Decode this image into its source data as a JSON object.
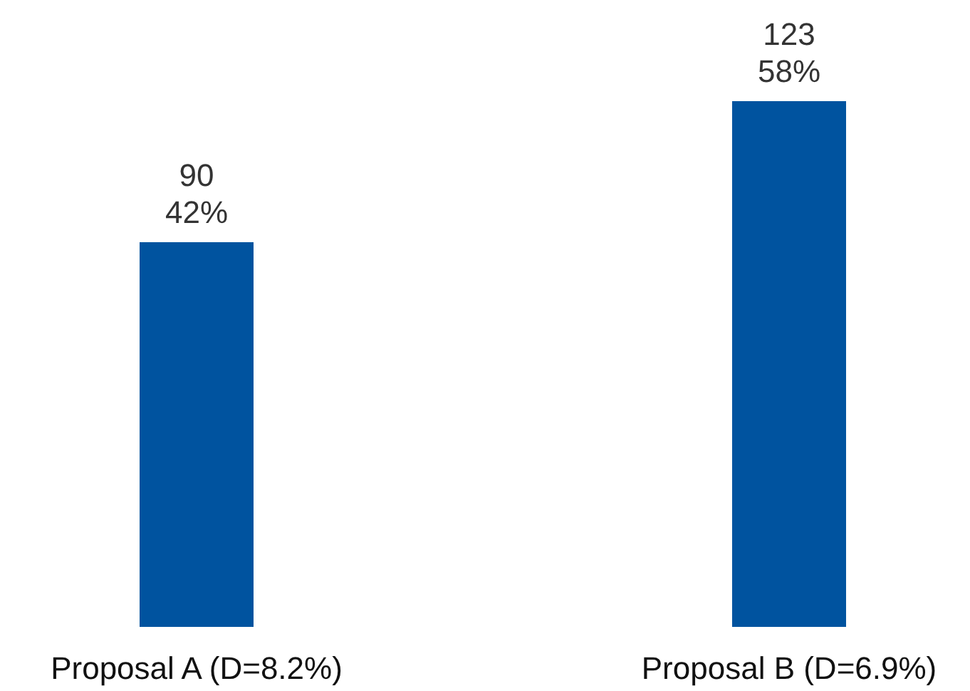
{
  "chart_data": {
    "type": "bar",
    "categories": [
      "Proposal A (D=8.2%)",
      "Proposal B (D=6.9%)"
    ],
    "values": [
      90,
      123
    ],
    "color": "#00539f",
    "value_labels": [
      "90\n42%",
      "123\n58%"
    ]
  }
}
